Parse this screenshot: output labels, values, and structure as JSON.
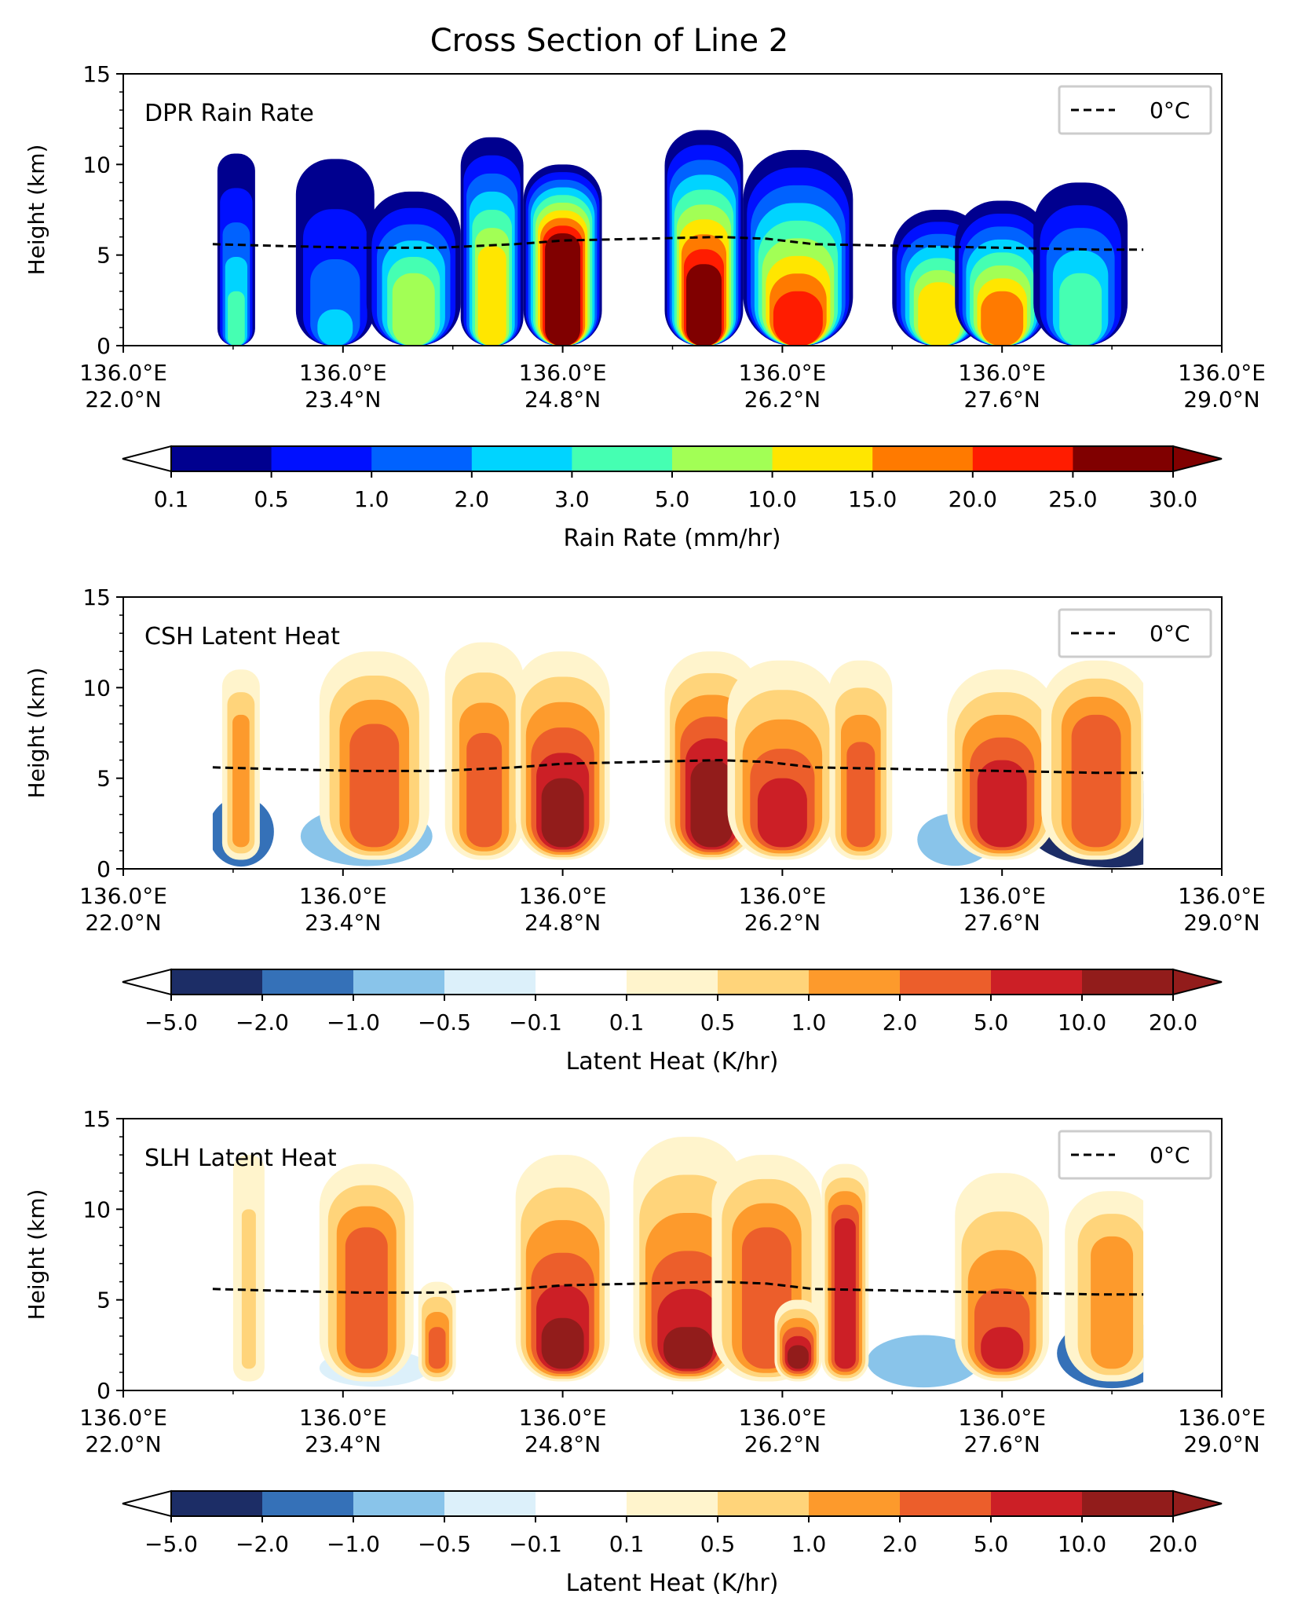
{
  "title": "Cross Section of Line 2",
  "chart_data": [
    {
      "type": "heatmap",
      "panel_label": "DPR Rain Rate",
      "ylabel": "Height (km)",
      "ylim": [
        0,
        15
      ],
      "yticks": [
        "0",
        "5",
        "10",
        "15"
      ],
      "xtick_labels": [
        [
          "136.0°E",
          "22.0°N"
        ],
        [
          "136.0°E",
          "23.4°N"
        ],
        [
          "136.0°E",
          "24.8°N"
        ],
        [
          "136.0°E",
          "26.2°N"
        ],
        [
          "136.0°E",
          "27.6°N"
        ],
        [
          "136.0°E",
          "29.0°N"
        ]
      ],
      "legend": {
        "entry": "0°C",
        "style": "dashed black line",
        "placement": "top-right"
      },
      "freezing_level_km": [
        [
          22.57,
          5.6
        ],
        [
          23.0,
          5.5
        ],
        [
          23.5,
          5.4
        ],
        [
          24.0,
          5.4
        ],
        [
          24.5,
          5.6
        ],
        [
          24.8,
          5.8
        ],
        [
          25.3,
          5.9
        ],
        [
          25.8,
          6.0
        ],
        [
          26.1,
          5.9
        ],
        [
          26.4,
          5.6
        ],
        [
          27.0,
          5.5
        ],
        [
          27.6,
          5.4
        ],
        [
          28.2,
          5.3
        ],
        [
          28.5,
          5.3
        ]
      ],
      "colorbar": {
        "label": "Rain Rate (mm/hr)",
        "ticks": [
          "0.1",
          "0.5",
          "1.0",
          "2.0",
          "3.0",
          "5.0",
          "10.0",
          "15.0",
          "20.0",
          "25.0",
          "30.0"
        ],
        "colors": [
          "#00008f",
          "#0010ff",
          "#0062ff",
          "#00d4ff",
          "#45ffb2",
          "#a2ff55",
          "#ffe600",
          "#ff7a00",
          "#ff1c00",
          "#800000"
        ],
        "extend": "both"
      },
      "cells": [
        {
          "x": 22.72,
          "top": 10.6,
          "core": 3.0,
          "w": 0.12,
          "bin": 4
        },
        {
          "x": 23.35,
          "top": 10.3,
          "core": 2.0,
          "w": 0.25,
          "bin": 3
        },
        {
          "x": 23.85,
          "top": 8.5,
          "core": 4.0,
          "w": 0.3,
          "bin": 5
        },
        {
          "x": 24.35,
          "top": 11.5,
          "core": 5.5,
          "w": 0.2,
          "bin": 6
        },
        {
          "x": 24.8,
          "top": 10.0,
          "core": 6.2,
          "w": 0.25,
          "bin": 9
        },
        {
          "x": 25.7,
          "top": 11.9,
          "core": 4.5,
          "w": 0.25,
          "bin": 9
        },
        {
          "x": 26.3,
          "top": 10.8,
          "core": 3.0,
          "w": 0.35,
          "bin": 8
        },
        {
          "x": 27.2,
          "top": 7.5,
          "core": 3.5,
          "w": 0.3,
          "bin": 6
        },
        {
          "x": 27.6,
          "top": 8.0,
          "core": 3.0,
          "w": 0.3,
          "bin": 7
        },
        {
          "x": 28.1,
          "top": 9.0,
          "core": 4.0,
          "w": 0.3,
          "bin": 4
        }
      ]
    },
    {
      "type": "heatmap",
      "panel_label": "CSH Latent Heat",
      "ylabel": "Height (km)",
      "ylim": [
        0,
        15
      ],
      "yticks": [
        "0",
        "5",
        "10",
        "15"
      ],
      "xtick_labels": [
        [
          "136.0°E",
          "22.0°N"
        ],
        [
          "136.0°E",
          "23.4°N"
        ],
        [
          "136.0°E",
          "24.8°N"
        ],
        [
          "136.0°E",
          "26.2°N"
        ],
        [
          "136.0°E",
          "27.6°N"
        ],
        [
          "136.0°E",
          "29.0°N"
        ]
      ],
      "legend": {
        "entry": "0°C",
        "style": "dashed black line",
        "placement": "top-right"
      },
      "freezing_level_km": [
        [
          22.57,
          5.6
        ],
        [
          23.0,
          5.5
        ],
        [
          23.5,
          5.4
        ],
        [
          24.0,
          5.4
        ],
        [
          24.5,
          5.6
        ],
        [
          24.8,
          5.8
        ],
        [
          25.3,
          5.9
        ],
        [
          25.8,
          6.0
        ],
        [
          26.1,
          5.9
        ],
        [
          26.4,
          5.6
        ],
        [
          27.0,
          5.5
        ],
        [
          27.6,
          5.4
        ],
        [
          28.2,
          5.3
        ],
        [
          28.5,
          5.3
        ]
      ],
      "colorbar": {
        "label": "Latent Heat (K/hr)",
        "ticks": [
          "−5.0",
          "−2.0",
          "−1.0",
          "−0.5",
          "−0.1",
          "0.1",
          "0.5",
          "1.0",
          "2.0",
          "5.0",
          "10.0",
          "20.0"
        ],
        "colors": [
          "#1c2d66",
          "#3571b8",
          "#89c4ea",
          "#dcf0fa",
          "#ffffff",
          "#fff4cc",
          "#ffd47a",
          "#fd9a2c",
          "#ec5e2b",
          "#cc1f26",
          "#921c1b"
        ],
        "extend": "both"
      },
      "cells": [
        {
          "x": 22.75,
          "top": 11.0,
          "core": 8.5,
          "w": 0.12,
          "bin": 7
        },
        {
          "x": 23.6,
          "top": 12.0,
          "core": 8.0,
          "w": 0.35,
          "bin": 8
        },
        {
          "x": 24.3,
          "top": 12.5,
          "core": 7.5,
          "w": 0.25,
          "bin": 8
        },
        {
          "x": 24.8,
          "top": 12.0,
          "core": 5.0,
          "w": 0.3,
          "bin": 10
        },
        {
          "x": 25.75,
          "top": 12.0,
          "core": 6.0,
          "w": 0.3,
          "bin": 10
        },
        {
          "x": 26.2,
          "top": 11.5,
          "core": 5.0,
          "w": 0.35,
          "bin": 9
        },
        {
          "x": 26.7,
          "top": 11.5,
          "core": 7.0,
          "w": 0.2,
          "bin": 8
        },
        {
          "x": 27.6,
          "top": 11.0,
          "core": 6.0,
          "w": 0.35,
          "bin": 9
        },
        {
          "x": 28.2,
          "top": 11.5,
          "core": 8.5,
          "w": 0.35,
          "bin": 8
        }
      ],
      "negative_regions": [
        {
          "x": 22.75,
          "depth": 4.0,
          "w": 0.15,
          "bin": 1
        },
        {
          "x": 23.55,
          "depth": 4.0,
          "w": 0.35,
          "bin": 2
        },
        {
          "x": 28.3,
          "depth": 4.5,
          "w": 0.35,
          "bin": 0
        },
        {
          "x": 27.3,
          "depth": 3.5,
          "w": 0.2,
          "bin": 2
        }
      ]
    },
    {
      "type": "heatmap",
      "panel_label": "SLH Latent Heat",
      "ylabel": "Height (km)",
      "ylim": [
        0,
        15
      ],
      "yticks": [
        "0",
        "5",
        "10",
        "15"
      ],
      "xtick_labels": [
        [
          "136.0°E",
          "22.0°N"
        ],
        [
          "136.0°E",
          "23.4°N"
        ],
        [
          "136.0°E",
          "24.8°N"
        ],
        [
          "136.0°E",
          "26.2°N"
        ],
        [
          "136.0°E",
          "27.6°N"
        ],
        [
          "136.0°E",
          "29.0°N"
        ]
      ],
      "legend": {
        "entry": "0°C",
        "style": "dashed black line",
        "placement": "top-right"
      },
      "freezing_level_km": [
        [
          22.57,
          5.6
        ],
        [
          23.0,
          5.5
        ],
        [
          23.5,
          5.4
        ],
        [
          24.0,
          5.4
        ],
        [
          24.5,
          5.6
        ],
        [
          24.8,
          5.8
        ],
        [
          25.3,
          5.9
        ],
        [
          25.8,
          6.0
        ],
        [
          26.1,
          5.9
        ],
        [
          26.4,
          5.6
        ],
        [
          27.0,
          5.5
        ],
        [
          27.6,
          5.4
        ],
        [
          28.2,
          5.3
        ],
        [
          28.5,
          5.3
        ]
      ],
      "colorbar": {
        "label": "Latent Heat (K/hr)",
        "ticks": [
          "−5.0",
          "−2.0",
          "−1.0",
          "−0.5",
          "−0.1",
          "0.1",
          "0.5",
          "1.0",
          "2.0",
          "5.0",
          "10.0",
          "20.0"
        ],
        "colors": [
          "#1c2d66",
          "#3571b8",
          "#89c4ea",
          "#dcf0fa",
          "#ffffff",
          "#fff4cc",
          "#ffd47a",
          "#fd9a2c",
          "#ec5e2b",
          "#cc1f26",
          "#921c1b"
        ],
        "extend": "both"
      },
      "cells": [
        {
          "x": 22.8,
          "top": 13.0,
          "core": 10.0,
          "w": 0.1,
          "bin": 6
        },
        {
          "x": 23.55,
          "top": 12.5,
          "core": 9.0,
          "w": 0.3,
          "bin": 8
        },
        {
          "x": 24.0,
          "top": 6.0,
          "core": 3.5,
          "w": 0.12,
          "bin": 8
        },
        {
          "x": 24.8,
          "top": 13.0,
          "core": 4.0,
          "w": 0.3,
          "bin": 10
        },
        {
          "x": 25.6,
          "top": 14.0,
          "core": 3.5,
          "w": 0.35,
          "bin": 10
        },
        {
          "x": 26.1,
          "top": 13.0,
          "core": 9.0,
          "w": 0.35,
          "bin": 8
        },
        {
          "x": 26.3,
          "top": 5.0,
          "core": 2.5,
          "w": 0.15,
          "bin": 10
        },
        {
          "x": 26.6,
          "top": 12.5,
          "core": 9.5,
          "w": 0.15,
          "bin": 9
        },
        {
          "x": 27.6,
          "top": 12.0,
          "core": 3.5,
          "w": 0.3,
          "bin": 9
        },
        {
          "x": 28.3,
          "top": 11.0,
          "core": 8.5,
          "w": 0.3,
          "bin": 7
        }
      ],
      "negative_regions": [
        {
          "x": 23.6,
          "depth": 3.0,
          "w": 0.35,
          "bin": 3
        },
        {
          "x": 28.3,
          "depth": 4.0,
          "w": 0.25,
          "bin": 1
        },
        {
          "x": 27.1,
          "depth": 3.5,
          "w": 0.3,
          "bin": 2
        }
      ]
    }
  ]
}
